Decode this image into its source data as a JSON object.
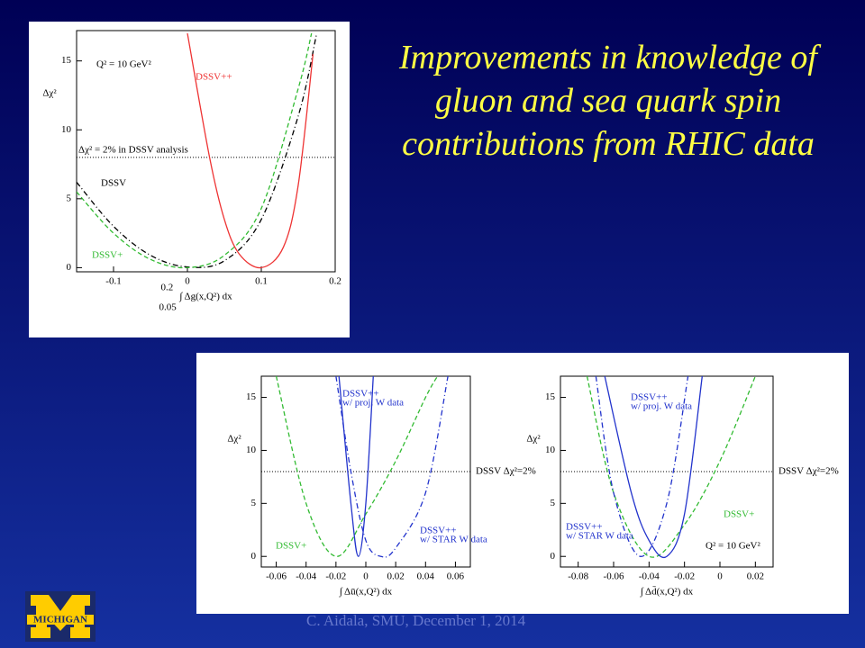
{
  "title": "Improvements in knowledge of gluon and sea quark spin contributions from RHIC data",
  "footer": "C. Aidala, SMU, December 1, 2014",
  "logo_text": "MICHIGAN",
  "chart_data": [
    {
      "type": "line",
      "y_label": "Δχ²",
      "x_label": "∫ Δg(x,Q²) dx",
      "x_label_upper": "0.2",
      "x_label_lower": "0.05",
      "xlim": [
        -0.15,
        0.2
      ],
      "ylim": [
        -0.3,
        17.2
      ],
      "xticks": [
        -0.1,
        0,
        0.1,
        0.2
      ],
      "yticks": [
        0,
        5,
        10,
        15
      ],
      "reference_line": {
        "value": 8,
        "label": "Δχ² = 2% in DSSV analysis"
      },
      "annotations": [
        "Q² = 10 GeV²"
      ],
      "series": [
        {
          "name": "DSSV",
          "color": "#000000",
          "dash": "6 3 1 3",
          "x": [
            -0.15,
            -0.1,
            -0.05,
            0,
            0.05,
            0.1,
            0.15,
            0.175
          ],
          "values": [
            6.2,
            3.0,
            0.9,
            0.05,
            0.5,
            3.5,
            11,
            17
          ]
        },
        {
          "name": "DSSV+",
          "color": "#33bb33",
          "dash": "5 3",
          "x": [
            -0.15,
            -0.1,
            -0.05,
            0,
            0.05,
            0.1,
            0.15,
            0.168
          ],
          "values": [
            5.5,
            2.5,
            0.6,
            0,
            0.9,
            4.3,
            13,
            17
          ]
        },
        {
          "name": "DSSV++",
          "color": "#ee3333",
          "dash": "",
          "x": [
            0,
            0.03,
            0.05,
            0.07,
            0.1,
            0.13,
            0.15,
            0.17
          ],
          "values": [
            17,
            8,
            3.5,
            1,
            0,
            1.5,
            6,
            15.5
          ]
        }
      ]
    },
    {
      "type": "line",
      "y_label": "Δχ²",
      "x_label": "∫ Δū(x,Q²) dx",
      "xlim": [
        -0.07,
        0.07
      ],
      "ylim": [
        -1,
        17
      ],
      "xticks": [
        -0.06,
        -0.04,
        -0.02,
        0,
        0.02,
        0.04,
        0.06
      ],
      "yticks": [
        0,
        5,
        10,
        15
      ],
      "reference_line": {
        "value": 8,
        "label": "DSSV Δχ²=2%"
      },
      "annotations": [],
      "series": [
        {
          "name": "DSSV+",
          "note": "",
          "color": "#33bb33",
          "dash": "5 3",
          "x": [
            -0.06,
            -0.04,
            -0.02,
            0,
            0.02,
            0.04,
            0.048
          ],
          "values": [
            17,
            5,
            0,
            4,
            9,
            15,
            17
          ]
        },
        {
          "name": "DSSV++",
          "note": "w/ proj. W data",
          "color": "#2233cc",
          "dash": "",
          "x": [
            -0.018,
            -0.01,
            -0.005,
            0,
            0.005
          ],
          "values": [
            17,
            5,
            0,
            5,
            17
          ]
        },
        {
          "name": "DSSV++",
          "note": "w/ STAR W data",
          "color": "#2233cc",
          "dash": "6 3 1 3",
          "x": [
            -0.02,
            -0.01,
            0,
            0.01,
            0.02,
            0.04,
            0.055
          ],
          "values": [
            17,
            8,
            1.5,
            0,
            0.8,
            6,
            17
          ]
        }
      ]
    },
    {
      "type": "line",
      "y_label": "Δχ²",
      "x_label": "∫ Δd̄(x,Q²) dx",
      "xlim": [
        -0.09,
        0.03
      ],
      "ylim": [
        -1,
        17
      ],
      "xticks": [
        -0.08,
        -0.06,
        -0.04,
        -0.02,
        0,
        0.02
      ],
      "yticks": [
        0,
        5,
        10,
        15
      ],
      "reference_line": {
        "value": 8,
        "label": "DSSV Δχ²=2%"
      },
      "annotations": [
        "Q² = 10 GeV²"
      ],
      "series": [
        {
          "name": "DSSV+",
          "note": "",
          "color": "#33bb33",
          "dash": "5 3",
          "x": [
            -0.075,
            -0.06,
            -0.04,
            -0.02,
            0,
            0.02
          ],
          "values": [
            17,
            6,
            0,
            3,
            9,
            17
          ]
        },
        {
          "name": "DSSV++",
          "note": "w/ proj. W data",
          "color": "#2233cc",
          "dash": "",
          "x": [
            -0.065,
            -0.05,
            -0.04,
            -0.03,
            -0.02,
            -0.01
          ],
          "values": [
            17,
            6,
            1.5,
            0,
            4,
            17
          ]
        },
        {
          "name": "DSSV++",
          "note": "w/ STAR W data",
          "color": "#2233cc",
          "dash": "6 3 1 3",
          "x": [
            -0.07,
            -0.06,
            -0.045,
            -0.03,
            -0.018
          ],
          "values": [
            17,
            6,
            0,
            5,
            17
          ]
        }
      ]
    }
  ]
}
